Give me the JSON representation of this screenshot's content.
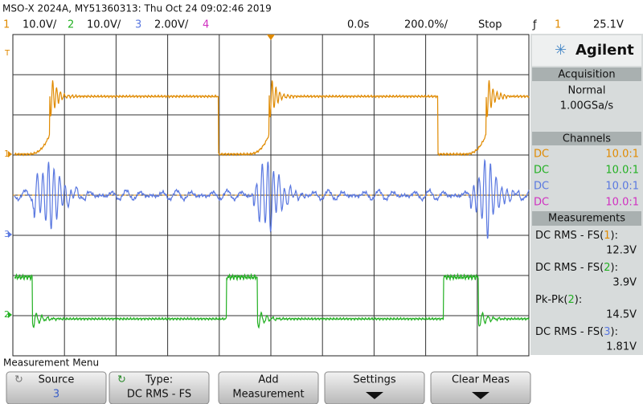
{
  "header": {
    "title": "MSO-X 2024A, MY51360313: Thu Oct 24 09:02:46 2019",
    "channels": [
      {
        "number": "1",
        "scale": "10.0V/"
      },
      {
        "number": "2",
        "scale": "10.0V/"
      },
      {
        "number": "3",
        "scale": "2.00V/"
      },
      {
        "number": "4"
      }
    ],
    "time_position": "0.0s",
    "time_scale": "200.0%/",
    "status": "Stop",
    "trigger_channel": "1",
    "trigger_level": "25.1V"
  },
  "markers": {
    "trigger": "T",
    "ground": [
      "1",
      "3",
      "2"
    ]
  },
  "side": {
    "brand": "Agilent",
    "acquisition": {
      "title": "Acquisition",
      "mode": "Normal",
      "rate": "1.00GSa/s"
    },
    "channels": {
      "title": "Channels",
      "rows": [
        {
          "coupling": "DC",
          "probe": "10.0:1",
          "color": "#e08a00"
        },
        {
          "coupling": "DC",
          "probe": "10.0:1",
          "color": "#22b022"
        },
        {
          "coupling": "DC",
          "probe": "10.0:1",
          "color": "#5a78e0"
        },
        {
          "coupling": "DC",
          "probe": "10.0:1",
          "color": "#d030c0"
        }
      ]
    },
    "measurements": {
      "title": "Measurements",
      "items": [
        {
          "label": "DC RMS - FS(",
          "channel": "1",
          "suffix": "):",
          "value": "12.3V"
        },
        {
          "label": "DC RMS - FS(",
          "channel": "2",
          "suffix": "):",
          "value": "3.9V"
        },
        {
          "label": "Pk-Pk(",
          "channel": "2",
          "suffix": "):",
          "value": "14.5V"
        },
        {
          "label": "DC RMS - FS(",
          "channel": "3",
          "suffix": "):",
          "value": "1.81V"
        }
      ]
    }
  },
  "menu": {
    "title": "Measurement Menu",
    "buttons": [
      {
        "label": "Source",
        "value": "3"
      },
      {
        "label": "Type:",
        "value": "DC RMS - FS"
      },
      {
        "label": "Add",
        "value": "Measurement"
      },
      {
        "label": "Settings"
      },
      {
        "label": "Clear Meas"
      }
    ]
  }
}
